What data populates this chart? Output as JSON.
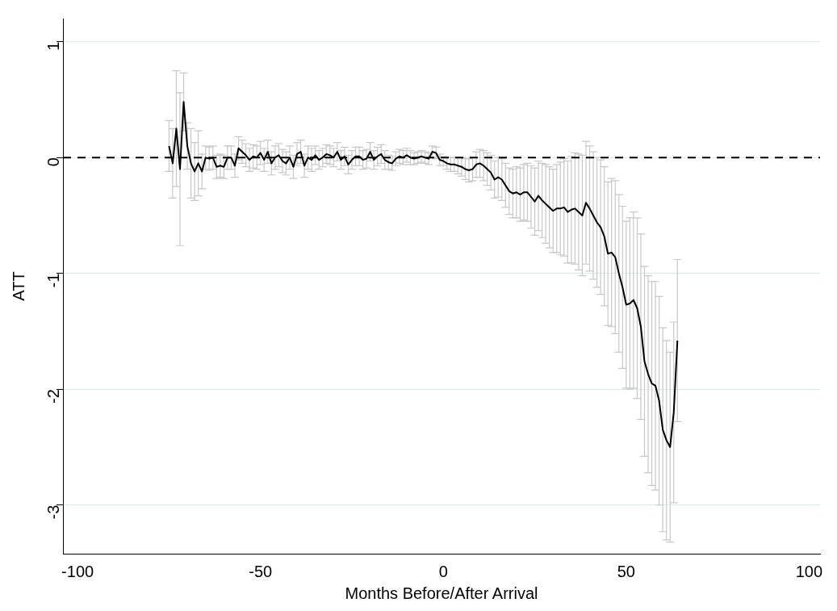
{
  "chart_data": {
    "type": "line",
    "xlabel": "Months Before/After Arrival",
    "ylabel": "ATT",
    "x": [
      -75,
      -74,
      -73,
      -72,
      -71,
      -70,
      -69,
      -68,
      -67,
      -66,
      -65,
      -64,
      -63,
      -62,
      -61,
      -60,
      -59,
      -58,
      -57,
      -56,
      -55,
      -54,
      -53,
      -52,
      -51,
      -50,
      -49,
      -48,
      -47,
      -46,
      -45,
      -44,
      -43,
      -42,
      -41,
      -40,
      -39,
      -38,
      -37,
      -36,
      -35,
      -34,
      -33,
      -32,
      -31,
      -30,
      -29,
      -28,
      -27,
      -26,
      -25,
      -24,
      -23,
      -22,
      -21,
      -20,
      -19,
      -18,
      -17,
      -16,
      -15,
      -14,
      -13,
      -12,
      -11,
      -10,
      -9,
      -8,
      -7,
      -6,
      -5,
      -4,
      -3,
      -2,
      -1,
      0,
      1,
      2,
      3,
      4,
      5,
      6,
      7,
      8,
      9,
      10,
      11,
      12,
      13,
      14,
      15,
      16,
      17,
      18,
      19,
      20,
      21,
      22,
      23,
      24,
      25,
      26,
      27,
      28,
      29,
      30,
      31,
      32,
      33,
      34,
      35,
      36,
      37,
      38,
      39,
      40,
      41,
      42,
      43,
      44,
      45,
      46,
      47,
      48,
      49,
      50,
      51,
      52,
      53,
      54,
      55,
      56,
      57,
      58,
      59,
      60,
      61,
      62,
      63,
      64
    ],
    "series": [
      {
        "color": "#000000",
        "values": [
          0.1,
          -0.05,
          0.25,
          -0.1,
          0.48,
          0.1,
          -0.05,
          -0.12,
          -0.05,
          -0.12,
          0,
          -0.01,
          0,
          -0.08,
          -0.07,
          -0.08,
          0,
          0,
          -0.07,
          0.08,
          0.05,
          0.02,
          -0.02,
          0.01,
          0,
          0.04,
          -0.02,
          0.05,
          -0.05,
          0,
          0.02,
          -0.03,
          -0.05,
          0,
          -0.08,
          0.03,
          0.05,
          -0.07,
          0,
          -0.02,
          0.02,
          -0.02,
          0,
          0.03,
          0.02,
          0,
          0.05,
          -0.02,
          0.01,
          -0.06,
          -0.02,
          0.01,
          0.01,
          -0.02,
          -0.01,
          0.05,
          -0.02,
          0.01,
          0.03,
          -0.02,
          -0.04,
          -0.05,
          -0.01,
          0.01,
          0,
          0.02,
          0,
          -0.01,
          0,
          0.01,
          0,
          -0.01,
          0.05,
          0.04,
          -0.02,
          -0.03,
          -0.05,
          -0.06,
          -0.06,
          -0.07,
          -0.08,
          -0.1,
          -0.11,
          -0.1,
          -0.06,
          -0.05,
          -0.07,
          -0.1,
          -0.13,
          -0.19,
          -0.17,
          -0.19,
          -0.24,
          -0.29,
          -0.31,
          -0.3,
          -0.32,
          -0.3,
          -0.3,
          -0.34,
          -0.38,
          -0.33,
          -0.37,
          -0.4,
          -0.43,
          -0.46,
          -0.44,
          -0.44,
          -0.43,
          -0.47,
          -0.45,
          -0.44,
          -0.47,
          -0.5,
          -0.39,
          -0.44,
          -0.5,
          -0.56,
          -0.6,
          -0.68,
          -0.83,
          -0.82,
          -0.86,
          -1.0,
          -1.12,
          -1.27,
          -1.26,
          -1.23,
          -1.3,
          -1.46,
          -1.76,
          -1.87,
          -1.95,
          -1.97,
          -2.1,
          -2.35,
          -2.44,
          -2.5,
          -2.2,
          -1.58
        ],
        "errors": [
          0.22,
          0.3,
          0.5,
          0.66,
          0.25,
          0.2,
          0.3,
          0.25,
          0.28,
          0.15,
          0.1,
          0.1,
          0.1,
          0.1,
          0.1,
          0.1,
          0.1,
          0.1,
          0.1,
          0.1,
          0.1,
          0.1,
          0.1,
          0.1,
          0.1,
          0.1,
          0.1,
          0.1,
          0.1,
          0.1,
          0.1,
          0.1,
          0.1,
          0.1,
          0.1,
          0.1,
          0.1,
          0.1,
          0.1,
          0.1,
          0.08,
          0.08,
          0.08,
          0.08,
          0.08,
          0.08,
          0.08,
          0.08,
          0.08,
          0.08,
          0.08,
          0.08,
          0.08,
          0.08,
          0.08,
          0.08,
          0.08,
          0.08,
          0.08,
          0.08,
          0.06,
          0.06,
          0.06,
          0.06,
          0.06,
          0.06,
          0.06,
          0.05,
          0.05,
          0.05,
          0.05,
          0.05,
          0.05,
          0.05,
          0.05,
          0.04,
          0.05,
          0.06,
          0.06,
          0.07,
          0.08,
          0.09,
          0.1,
          0.1,
          0.11,
          0.12,
          0.13,
          0.14,
          0.15,
          0.16,
          0.17,
          0.18,
          0.19,
          0.2,
          0.21,
          0.22,
          0.23,
          0.24,
          0.25,
          0.27,
          0.29,
          0.3,
          0.32,
          0.34,
          0.35,
          0.36,
          0.38,
          0.4,
          0.42,
          0.44,
          0.46,
          0.48,
          0.5,
          0.52,
          0.53,
          0.54,
          0.55,
          0.56,
          0.58,
          0.6,
          0.62,
          0.64,
          0.66,
          0.68,
          0.7,
          0.72,
          0.74,
          0.76,
          0.78,
          0.8,
          0.82,
          0.85,
          0.88,
          0.9,
          0.9,
          0.88,
          0.86,
          0.82,
          0.78,
          0.7
        ]
      }
    ],
    "xlim": [
      -104,
      103
    ],
    "ylim": [
      -3.42,
      1.2
    ],
    "xticks": [
      -100,
      -50,
      0,
      50,
      100
    ],
    "yticks": [
      -3,
      -2,
      -1,
      0,
      1
    ],
    "grid": "y",
    "legend": false,
    "marker": "none",
    "line_style": "solid",
    "ref_lines": [
      {
        "axis": "y",
        "value": 0,
        "line_style": "dashed",
        "color": "#000000"
      }
    ]
  }
}
